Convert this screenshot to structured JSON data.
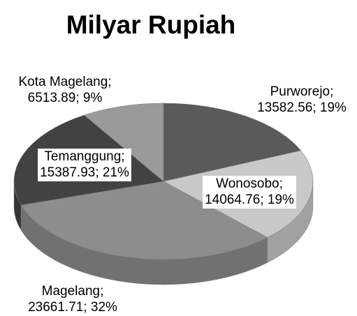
{
  "chart_data": {
    "type": "pie",
    "title": "Milyar Rupiah",
    "categories": [
      "Purworejo;",
      "Wonosobo;",
      "Magelang;",
      "Temanggung;",
      "Kota Magelang;"
    ],
    "values": [
      13582.56,
      14064.76,
      23661.71,
      15387.93,
      6513.89
    ],
    "value_labels": [
      "13582.56; 19%",
      "14064.76; 19%",
      "23661.71; 32%",
      "15387.93; 21%",
      "6513.89; 9%"
    ],
    "colors": [
      "#5a5a5a",
      "#c9c9c9",
      "#8d8d8d",
      "#424242",
      "#9a9a9a"
    ]
  }
}
